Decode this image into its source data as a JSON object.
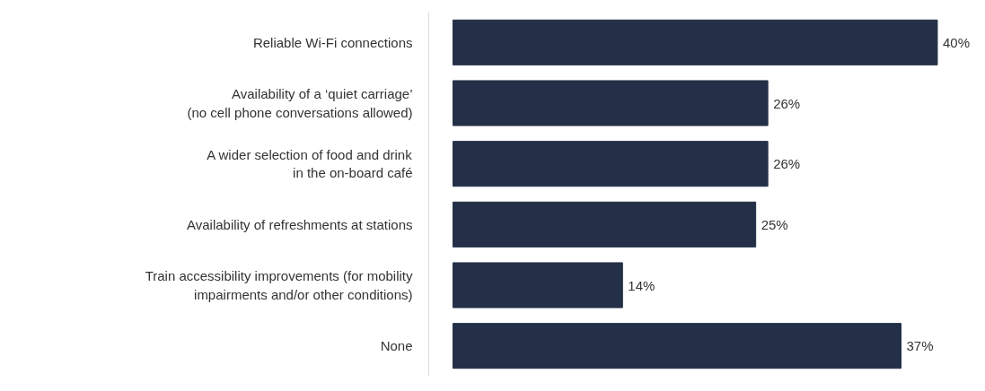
{
  "chart_data": {
    "type": "bar",
    "orientation": "horizontal",
    "categories": [
      "Reliable Wi-Fi connections",
      "Availability of a ‘quiet carriage’\n(no cell phone conversations allowed)",
      "A wider selection of food and drink\nin the on-board café",
      "Availability of refreshments at stations",
      "Train accessibility improvements (for mobility\nimpairments and/or other conditions)",
      "None"
    ],
    "values": [
      40,
      26,
      26,
      25,
      14,
      37
    ],
    "value_labels": [
      "40%",
      "26%",
      "26%",
      "25%",
      "14%",
      "37%"
    ],
    "color": "#233047",
    "grid": false
  }
}
